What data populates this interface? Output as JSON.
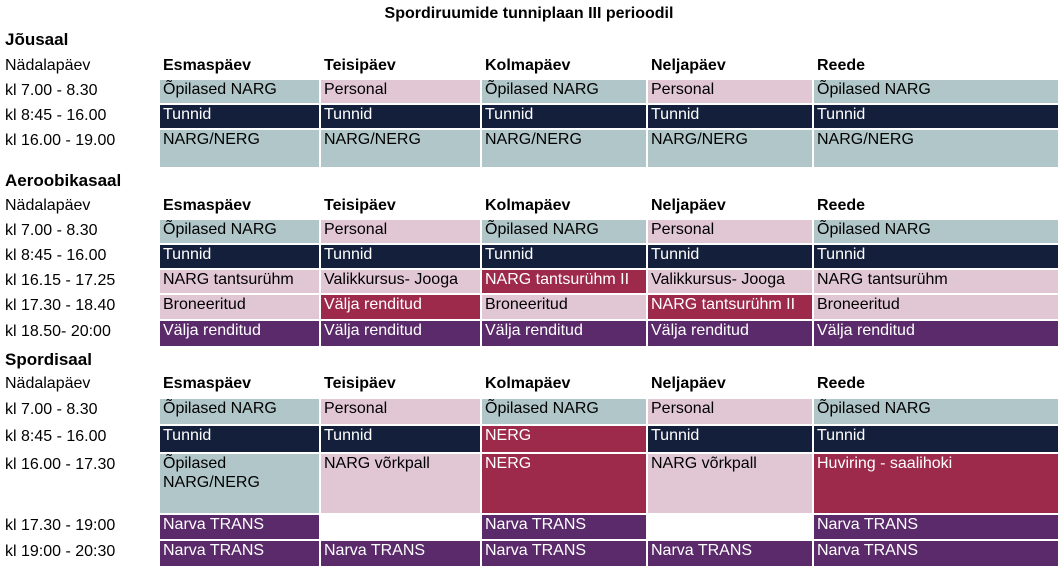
{
  "title": "Spordiruumide tunniplaan III perioodil",
  "days_label": "Nädalapäev",
  "days": [
    "Esmaspäev",
    "Teisipäev",
    "Kolmapäev",
    "Neljapäev",
    "Reede"
  ],
  "colors": {
    "teal": "#b0c6c8",
    "pink": "#e1c6d3",
    "navy": "#14203b",
    "red": "#9e2a4b",
    "purple": "#5b2a6a"
  },
  "sections": [
    {
      "name": "Jõusaal",
      "rows": [
        {
          "time": "kl 7.00 - 8.30",
          "cells": [
            {
              "t": "Õpilased NARG",
              "c": "teal"
            },
            {
              "t": "Personal",
              "c": "pink"
            },
            {
              "t": "Õpilased NARG",
              "c": "teal"
            },
            {
              "t": "Personal",
              "c": "pink"
            },
            {
              "t": "Õpilased NARG",
              "c": "teal"
            }
          ]
        },
        {
          "time": "kl 8:45 - 16.00",
          "cells": [
            {
              "t": "Tunnid",
              "c": "navy"
            },
            {
              "t": "Tunnid",
              "c": "navy"
            },
            {
              "t": "Tunnid",
              "c": "navy"
            },
            {
              "t": "Tunnid",
              "c": "navy"
            },
            {
              "t": "Tunnid",
              "c": "navy"
            }
          ]
        },
        {
          "time": "kl 16.00 - 19.00",
          "cells": [
            {
              "t": "NARG/NERG",
              "c": "teal"
            },
            {
              "t": "NARG/NERG",
              "c": "teal"
            },
            {
              "t": "NARG/NERG",
              "c": "teal"
            },
            {
              "t": "NARG/NERG",
              "c": "teal"
            },
            {
              "t": "NARG/NERG",
              "c": "teal"
            }
          ]
        }
      ]
    },
    {
      "name": "Aeroobikasaal",
      "rows": [
        {
          "time": "kl 7.00 - 8.30",
          "cells": [
            {
              "t": "Õpilased NARG",
              "c": "teal"
            },
            {
              "t": "Personal",
              "c": "pink"
            },
            {
              "t": "Õpilased NARG",
              "c": "teal"
            },
            {
              "t": "Personal",
              "c": "pink"
            },
            {
              "t": "Õpilased NARG",
              "c": "teal"
            }
          ]
        },
        {
          "time": "kl 8:45 - 16.00",
          "cells": [
            {
              "t": "Tunnid",
              "c": "navy"
            },
            {
              "t": "Tunnid",
              "c": "navy"
            },
            {
              "t": "Tunnid",
              "c": "navy"
            },
            {
              "t": "Tunnid",
              "c": "navy"
            },
            {
              "t": "Tunnid",
              "c": "navy"
            }
          ]
        },
        {
          "time": "kl 16.15 - 17.25",
          "cells": [
            {
              "t": "NARG tantsurühm",
              "c": "pink"
            },
            {
              "t": "Valikkursus- Jooga",
              "c": "pink"
            },
            {
              "t": "NARG tantsurühm II",
              "c": "red"
            },
            {
              "t": "Valikkursus- Jooga",
              "c": "pink"
            },
            {
              "t": "NARG tantsurühm",
              "c": "pink"
            }
          ]
        },
        {
          "time": "kl 17.30 - 18.40",
          "cells": [
            {
              "t": "Broneeritud",
              "c": "pink"
            },
            {
              "t": "Välja renditud",
              "c": "red"
            },
            {
              "t": "Broneeritud",
              "c": "pink"
            },
            {
              "t": "NARG tantsurühm II",
              "c": "red"
            },
            {
              "t": "Broneeritud",
              "c": "pink"
            }
          ]
        },
        {
          "time": "kl 18.50- 20:00",
          "cells": [
            {
              "t": "Välja renditud",
              "c": "purple"
            },
            {
              "t": "Välja renditud",
              "c": "purple"
            },
            {
              "t": "Välja renditud",
              "c": "purple"
            },
            {
              "t": "Välja renditud",
              "c": "purple"
            },
            {
              "t": "Välja renditud",
              "c": "purple"
            }
          ]
        }
      ]
    },
    {
      "name": "Spordisaal",
      "rows": [
        {
          "time": "kl 7.00 - 8.30",
          "cells": [
            {
              "t": "Õpilased NARG",
              "c": "teal"
            },
            {
              "t": "Personal",
              "c": "pink"
            },
            {
              "t": "Õpilased NARG",
              "c": "teal"
            },
            {
              "t": "Personal",
              "c": "pink"
            },
            {
              "t": "Õpilased NARG",
              "c": "teal"
            }
          ]
        },
        {
          "time": "kl 8:45 - 16.00",
          "cells": [
            {
              "t": "Tunnid",
              "c": "navy"
            },
            {
              "t": "Tunnid",
              "c": "navy"
            },
            {
              "t": "NERG",
              "c": "red"
            },
            {
              "t": "Tunnid",
              "c": "navy"
            },
            {
              "t": "Tunnid",
              "c": "navy"
            }
          ]
        },
        {
          "time": "kl 16.00 - 17.30",
          "cells": [
            {
              "t": "Õpilased NARG/NERG",
              "c": "teal"
            },
            {
              "t": "NARG võrkpall",
              "c": "pink"
            },
            {
              "t": "NERG",
              "c": "red"
            },
            {
              "t": "NARG võrkpall",
              "c": "pink"
            },
            {
              "t": "Huviring - saalihoki",
              "c": "red"
            }
          ]
        },
        {
          "time": "kl 17.30 - 19:00",
          "cells": [
            {
              "t": "Narva TRANS",
              "c": "purple"
            },
            {
              "t": "",
              "c": "none"
            },
            {
              "t": "Narva TRANS",
              "c": "purple"
            },
            {
              "t": "",
              "c": "none"
            },
            {
              "t": "Narva TRANS",
              "c": "purple"
            }
          ]
        },
        {
          "time": "kl 19:00 - 20:30",
          "cells": [
            {
              "t": "Narva TRANS",
              "c": "purple"
            },
            {
              "t": "Narva TRANS",
              "c": "purple"
            },
            {
              "t": "Narva TRANS",
              "c": "purple"
            },
            {
              "t": "Narva TRANS",
              "c": "purple"
            },
            {
              "t": "Narva TRANS",
              "c": "purple"
            }
          ]
        }
      ]
    }
  ]
}
